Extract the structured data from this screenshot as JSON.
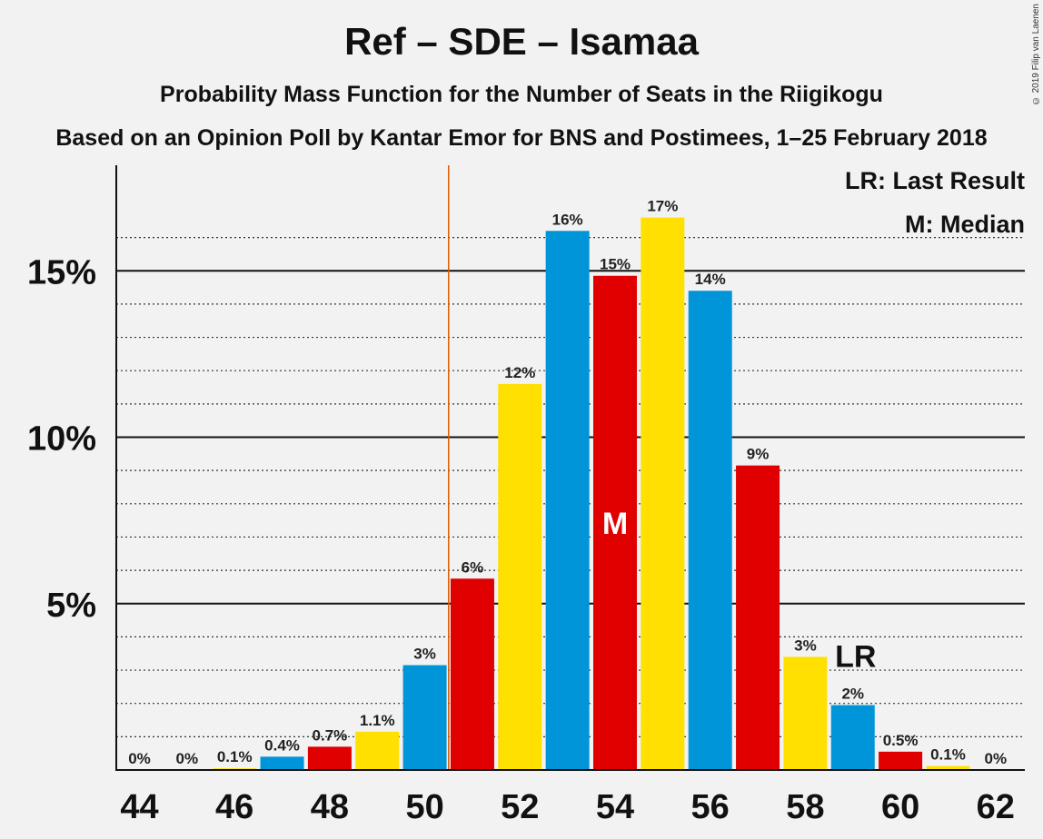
{
  "chart_data": {
    "type": "bar",
    "title": "Ref – SDE – Isamaa",
    "subtitle": "Probability Mass Function for the Number of Seats in the Riigikogu",
    "subtitle2": "Based on an Opinion Poll by Kantar Emor for BNS and Postimees, 1–25 February 2018",
    "copyright": "© 2019 Filip van Laenen",
    "legend": [
      "LR: Last Result",
      "M: Median"
    ],
    "x": [
      44,
      45,
      46,
      47,
      48,
      49,
      50,
      51,
      52,
      53,
      54,
      55,
      56,
      57,
      58,
      59,
      60,
      61,
      62
    ],
    "values": [
      0,
      0,
      0.05,
      0.4,
      0.7,
      1.15,
      3.15,
      5.75,
      11.6,
      16.2,
      14.85,
      16.6,
      14.4,
      9.15,
      3.4,
      1.95,
      0.55,
      0.12,
      0
    ],
    "labels": [
      "0%",
      "0%",
      "0.1%",
      "0.4%",
      "0.7%",
      "1.1%",
      "3%",
      "6%",
      "12%",
      "16%",
      "15%",
      "17%",
      "14%",
      "9%",
      "3%",
      "2%",
      "0.5%",
      "0.1%",
      "0%"
    ],
    "x_ticks": [
      "44",
      "46",
      "48",
      "50",
      "52",
      "54",
      "56",
      "58",
      "60",
      "62"
    ],
    "y_ticks": [
      "5%",
      "10%",
      "15%"
    ],
    "ylim": [
      0,
      17.5
    ],
    "colors": [
      "#0095d9",
      "#e00000",
      "#ffe000"
    ],
    "median_seat": 54,
    "median_label": "M",
    "last_result_seat": 59,
    "last_result_label": "LR",
    "majority_line_x": 50.5,
    "majority_line_color": "#e05a00",
    "grid": true
  }
}
